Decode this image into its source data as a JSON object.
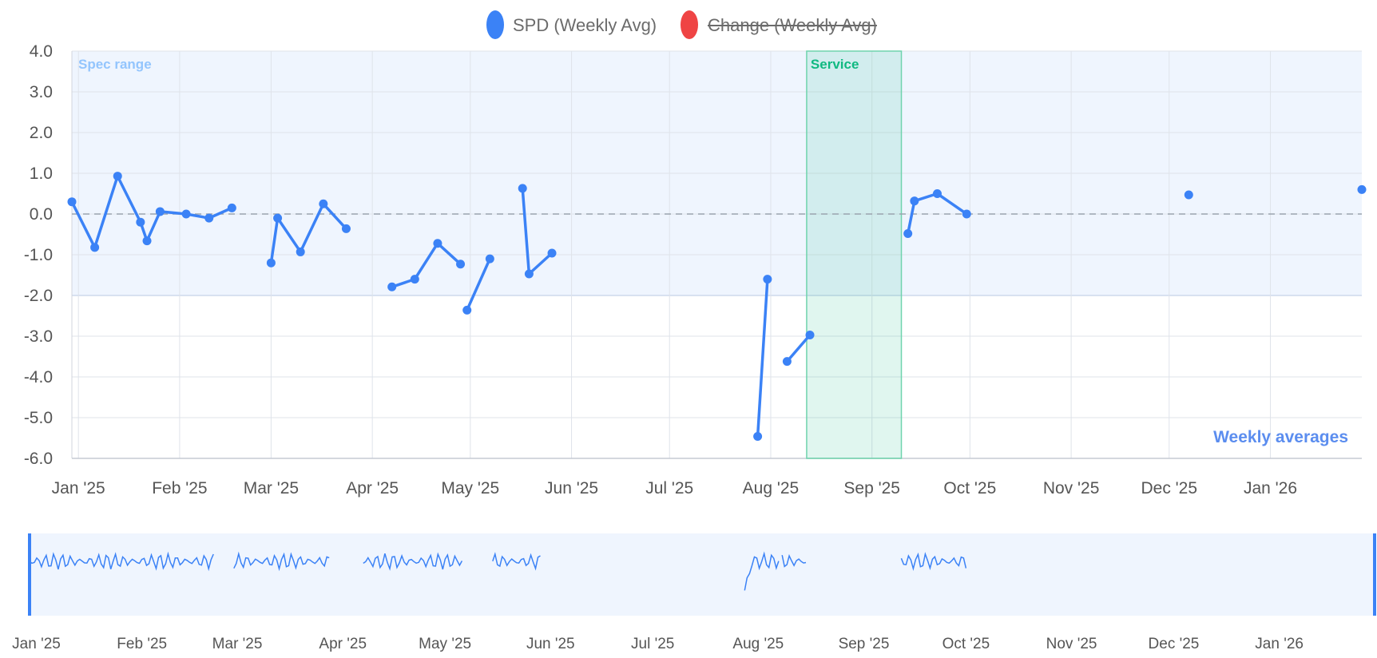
{
  "legend": [
    {
      "label": "SPD (Weekly Avg)",
      "color": "#3b82f6",
      "hidden": false
    },
    {
      "label": "Change (Weekly Avg)",
      "color": "#ef4444",
      "hidden": true
    }
  ],
  "bands": {
    "spec": {
      "label": "Spec range",
      "y_from": -2,
      "y_to": 4,
      "color": "#93c5fd"
    },
    "service": {
      "label": "Service",
      "x_from": "2025-08-12",
      "x_to": "2025-09-10",
      "color": "#10b981"
    }
  },
  "corner_label": "Weekly averages",
  "chart_data": {
    "type": "line",
    "x_type": "date",
    "xlim": [
      "2024-12-30",
      "2026-01-29"
    ],
    "ylim": [
      -6,
      4
    ],
    "y_ticks": [
      "4.0",
      "3.0",
      "2.0",
      "1.0",
      "0.0",
      "-1.0",
      "-2.0",
      "-3.0",
      "-4.0",
      "-5.0",
      "-6.0"
    ],
    "x_ticks": [
      {
        "label": "Jan '25",
        "date": "2025-01-01"
      },
      {
        "label": "Feb '25",
        "date": "2025-02-01"
      },
      {
        "label": "Mar '25",
        "date": "2025-03-01"
      },
      {
        "label": "Apr '25",
        "date": "2025-04-01"
      },
      {
        "label": "May '25",
        "date": "2025-05-01"
      },
      {
        "label": "Jun '25",
        "date": "2025-06-01"
      },
      {
        "label": "Jul '25",
        "date": "2025-07-01"
      },
      {
        "label": "Aug '25",
        "date": "2025-08-01"
      },
      {
        "label": "Sep '25",
        "date": "2025-09-01"
      },
      {
        "label": "Oct '25",
        "date": "2025-10-01"
      },
      {
        "label": "Nov '25",
        "date": "2025-11-01"
      },
      {
        "label": "Dec '25",
        "date": "2025-12-01"
      },
      {
        "label": "Jan '26",
        "date": "2026-01-01"
      }
    ],
    "series": [
      {
        "name": "SPD (Weekly Avg)",
        "segments": [
          [
            [
              "2024-12-30",
              0.3
            ],
            [
              "2025-01-06",
              -0.82
            ],
            [
              "2025-01-13",
              0.93
            ],
            [
              "2025-01-20",
              -0.2
            ],
            [
              "2025-01-22",
              -0.66
            ],
            [
              "2025-01-26",
              0.06
            ],
            [
              "2025-02-03",
              0.0
            ],
            [
              "2025-02-10",
              -0.1
            ],
            [
              "2025-02-17",
              0.15
            ]
          ],
          [
            [
              "2025-03-01",
              -1.2
            ],
            [
              "2025-03-03",
              -0.1
            ],
            [
              "2025-03-10",
              -0.93
            ],
            [
              "2025-03-17",
              0.25
            ],
            [
              "2025-03-24",
              -0.36
            ]
          ],
          [
            [
              "2025-04-07",
              -1.79
            ],
            [
              "2025-04-14",
              -1.6
            ],
            [
              "2025-04-21",
              -0.72
            ],
            [
              "2025-04-28",
              -1.23
            ]
          ],
          [
            [
              "2025-04-30",
              -2.36
            ],
            [
              "2025-05-07",
              -1.1
            ]
          ],
          [
            [
              "2025-05-17",
              0.63
            ],
            [
              "2025-05-19",
              -1.47
            ],
            [
              "2025-05-26",
              -0.96
            ]
          ],
          [
            [
              "2025-07-28",
              -5.46
            ],
            [
              "2025-07-31",
              -1.6
            ]
          ],
          [
            [
              "2025-08-06",
              -3.62
            ],
            [
              "2025-08-13",
              -2.97
            ]
          ],
          [
            [
              "2025-09-12",
              -0.48
            ],
            [
              "2025-09-14",
              0.32
            ],
            [
              "2025-09-21",
              0.5
            ],
            [
              "2025-09-30",
              0.0
            ]
          ],
          [
            [
              "2025-12-07",
              0.47
            ]
          ],
          [
            [
              "2026-01-29",
              0.6
            ]
          ]
        ]
      },
      {
        "name": "Change (Weekly Avg)",
        "segments": []
      }
    ]
  },
  "navigator": {
    "x_ticks": [
      {
        "label": "Jan '25",
        "date": "2025-01-01"
      },
      {
        "label": "Feb '25",
        "date": "2025-02-01"
      },
      {
        "label": "Mar '25",
        "date": "2025-03-01"
      },
      {
        "label": "Apr '25",
        "date": "2025-04-01"
      },
      {
        "label": "May '25",
        "date": "2025-05-01"
      },
      {
        "label": "Jun '25",
        "date": "2025-06-01"
      },
      {
        "label": "Jul '25",
        "date": "2025-07-01"
      },
      {
        "label": "Aug '25",
        "date": "2025-08-01"
      },
      {
        "label": "Sep '25",
        "date": "2025-09-01"
      },
      {
        "label": "Oct '25",
        "date": "2025-10-01"
      },
      {
        "label": "Nov '25",
        "date": "2025-11-01"
      },
      {
        "label": "Dec '25",
        "date": "2025-12-01"
      },
      {
        "label": "Jan '26",
        "date": "2026-01-01"
      }
    ],
    "data_ranges": [
      [
        "2024-12-30",
        "2025-02-22"
      ],
      [
        "2025-02-28",
        "2025-03-28"
      ],
      [
        "2025-04-07",
        "2025-05-06"
      ],
      [
        "2025-05-15",
        "2025-05-29"
      ],
      [
        "2025-07-28",
        "2025-08-07"
      ],
      [
        "2025-08-08",
        "2025-08-15"
      ],
      [
        "2025-09-12",
        "2025-10-01"
      ]
    ]
  }
}
